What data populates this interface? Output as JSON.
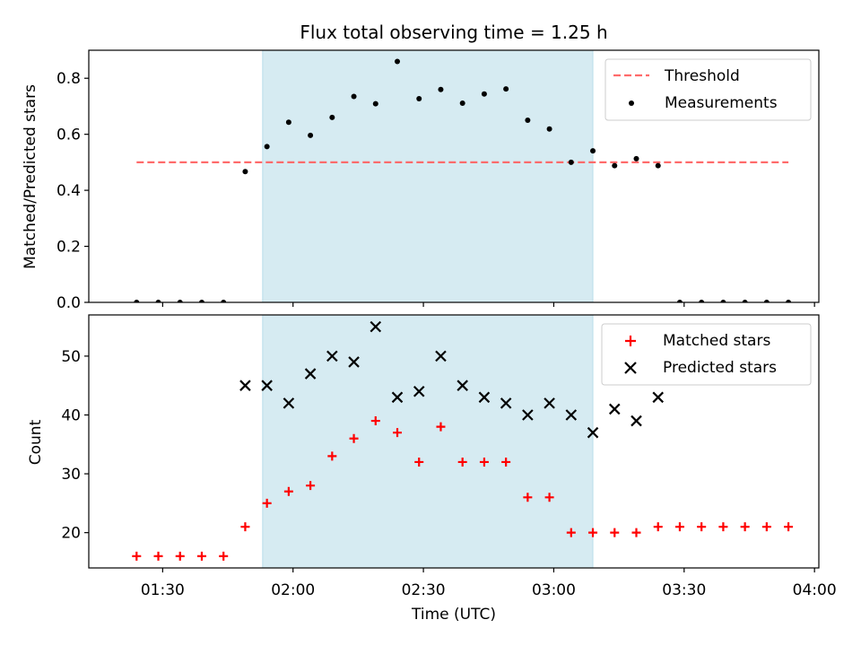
{
  "chart_data": [
    {
      "type": "scatter",
      "title": "Flux total observing time = 1.25 h",
      "xlabel": "",
      "ylabel": "Matched/Predicted stars",
      "ylim": [
        0,
        0.9
      ],
      "yticks": [
        "0.0",
        "0.2",
        "0.4",
        "0.6",
        "0.8"
      ],
      "shaded_region": {
        "x_start": "01:53",
        "x_end": "03:09",
        "color": "#add8e6"
      },
      "threshold": {
        "name": "Threshold",
        "value": 0.5,
        "x_start": "01:24",
        "x_end": "03:54",
        "color": "#ff6b6b",
        "style": "dashed"
      },
      "legend": {
        "placement": "upper right",
        "entries": [
          "Threshold",
          "Measurements"
        ]
      },
      "series": [
        {
          "name": "Measurements",
          "marker": "dot",
          "color": "#000000",
          "points": [
            [
              "01:24",
              0.0
            ],
            [
              "01:29",
              0.0
            ],
            [
              "01:34",
              0.0
            ],
            [
              "01:39",
              0.0
            ],
            [
              "01:44",
              0.0
            ],
            [
              "01:49",
              0.467
            ],
            [
              "01:54",
              0.556
            ],
            [
              "01:59",
              0.643
            ],
            [
              "02:04",
              0.596
            ],
            [
              "02:09",
              0.66
            ],
            [
              "02:14",
              0.735
            ],
            [
              "02:19",
              0.709
            ],
            [
              "02:24",
              0.86
            ],
            [
              "02:29",
              0.727
            ],
            [
              "02:34",
              0.76
            ],
            [
              "02:39",
              0.711
            ],
            [
              "02:44",
              0.744
            ],
            [
              "02:49",
              0.762
            ],
            [
              "02:54",
              0.65
            ],
            [
              "02:59",
              0.619
            ],
            [
              "03:04",
              0.5
            ],
            [
              "03:09",
              0.541
            ],
            [
              "03:14",
              0.488
            ],
            [
              "03:19",
              0.513
            ],
            [
              "03:24",
              0.488
            ],
            [
              "03:29",
              0.0
            ],
            [
              "03:34",
              0.0
            ],
            [
              "03:39",
              0.0
            ],
            [
              "03:44",
              0.0
            ],
            [
              "03:49",
              0.0
            ],
            [
              "03:54",
              0.0
            ]
          ]
        }
      ]
    },
    {
      "type": "scatter",
      "title": "",
      "xlabel": "Time (UTC)",
      "ylabel": "Count",
      "ylim": [
        14,
        57
      ],
      "yticks": [
        "20",
        "30",
        "40",
        "50"
      ],
      "xlim": [
        "01:13",
        "04:01"
      ],
      "xticks": [
        "01:30",
        "02:00",
        "02:30",
        "03:00",
        "03:30",
        "04:00"
      ],
      "shaded_region": {
        "x_start": "01:53",
        "x_end": "03:09",
        "color": "#add8e6"
      },
      "legend": {
        "placement": "upper right",
        "entries": [
          "Matched stars",
          "Predicted stars"
        ]
      },
      "series": [
        {
          "name": "Matched stars",
          "marker": "plus",
          "color": "#ff0000",
          "points": [
            [
              "01:24",
              16
            ],
            [
              "01:29",
              16
            ],
            [
              "01:34",
              16
            ],
            [
              "01:39",
              16
            ],
            [
              "01:44",
              16
            ],
            [
              "01:49",
              21
            ],
            [
              "01:54",
              25
            ],
            [
              "01:59",
              27
            ],
            [
              "02:04",
              28
            ],
            [
              "02:09",
              33
            ],
            [
              "02:14",
              36
            ],
            [
              "02:19",
              39
            ],
            [
              "02:24",
              37
            ],
            [
              "02:29",
              32
            ],
            [
              "02:34",
              38
            ],
            [
              "02:39",
              32
            ],
            [
              "02:44",
              32
            ],
            [
              "02:49",
              32
            ],
            [
              "02:54",
              26
            ],
            [
              "02:59",
              26
            ],
            [
              "03:04",
              20
            ],
            [
              "03:09",
              20
            ],
            [
              "03:14",
              20
            ],
            [
              "03:19",
              20
            ],
            [
              "03:24",
              21
            ],
            [
              "03:29",
              21
            ],
            [
              "03:34",
              21
            ],
            [
              "03:39",
              21
            ],
            [
              "03:44",
              21
            ],
            [
              "03:49",
              21
            ],
            [
              "03:54",
              21
            ]
          ]
        },
        {
          "name": "Predicted stars",
          "marker": "x",
          "color": "#000000",
          "points": [
            [
              "01:49",
              45
            ],
            [
              "01:54",
              45
            ],
            [
              "01:59",
              42
            ],
            [
              "02:04",
              47
            ],
            [
              "02:09",
              50
            ],
            [
              "02:14",
              49
            ],
            [
              "02:19",
              55
            ],
            [
              "02:24",
              43
            ],
            [
              "02:29",
              44
            ],
            [
              "02:34",
              50
            ],
            [
              "02:39",
              45
            ],
            [
              "02:44",
              43
            ],
            [
              "02:49",
              42
            ],
            [
              "02:54",
              40
            ],
            [
              "02:59",
              42
            ],
            [
              "03:04",
              40
            ],
            [
              "03:09",
              37
            ],
            [
              "03:14",
              41
            ],
            [
              "03:19",
              39
            ],
            [
              "03:24",
              43
            ]
          ]
        }
      ]
    }
  ]
}
